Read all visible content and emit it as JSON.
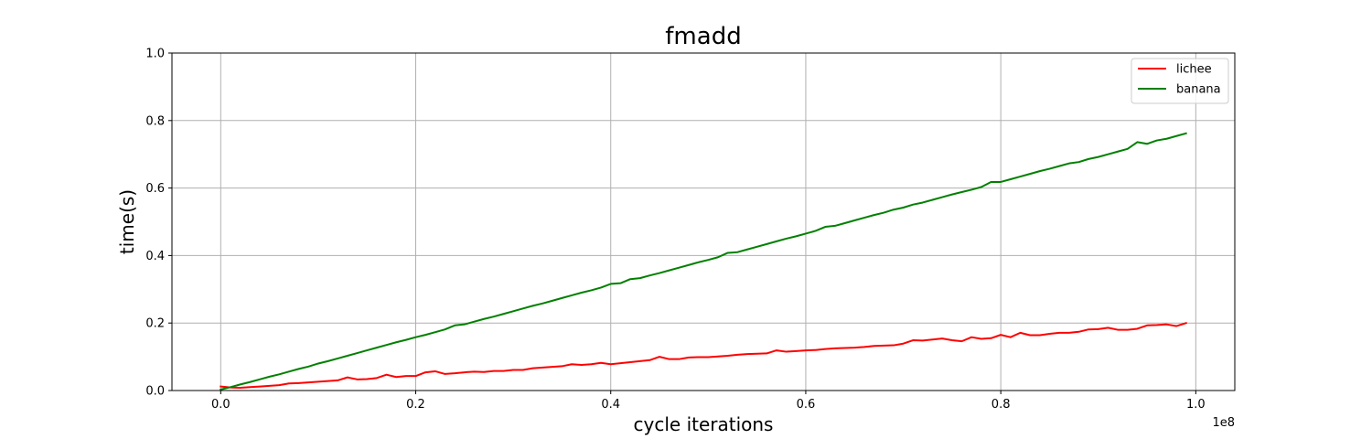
{
  "chart_data": {
    "type": "line",
    "title": "fmadd",
    "xlabel": "cycle iterations",
    "ylabel": "time(s)",
    "x_offset_label": "1e8",
    "xlim": [
      -0.05,
      1.04
    ],
    "ylim": [
      0.0,
      1.0
    ],
    "xticks": [
      0.0,
      0.2,
      0.4,
      0.6,
      0.8,
      1.0
    ],
    "xtick_labels": [
      "0.0",
      "0.2",
      "0.4",
      "0.6",
      "0.8",
      "1.0"
    ],
    "yticks": [
      0.0,
      0.2,
      0.4,
      0.6,
      0.8,
      1.0
    ],
    "ytick_labels": [
      "0.0",
      "0.2",
      "0.4",
      "0.6",
      "0.8",
      "1.0"
    ],
    "grid": true,
    "legend_position": "top-right",
    "x": [
      0.0,
      0.01,
      0.02,
      0.03,
      0.04,
      0.05,
      0.06,
      0.07,
      0.08,
      0.09,
      0.1,
      0.11,
      0.12,
      0.13,
      0.14,
      0.15,
      0.16,
      0.17,
      0.18,
      0.19,
      0.2,
      0.21,
      0.22,
      0.23,
      0.24,
      0.25,
      0.26,
      0.27,
      0.28,
      0.29,
      0.3,
      0.31,
      0.32,
      0.33,
      0.34,
      0.35,
      0.36,
      0.37,
      0.38,
      0.39,
      0.4,
      0.41,
      0.42,
      0.43,
      0.44,
      0.45,
      0.46,
      0.47,
      0.48,
      0.49,
      0.5,
      0.51,
      0.52,
      0.53,
      0.54,
      0.55,
      0.56,
      0.57,
      0.58,
      0.59,
      0.6,
      0.61,
      0.62,
      0.63,
      0.64,
      0.65,
      0.66,
      0.67,
      0.68,
      0.69,
      0.7,
      0.71,
      0.72,
      0.73,
      0.74,
      0.75,
      0.76,
      0.77,
      0.78,
      0.79,
      0.8,
      0.81,
      0.82,
      0.83,
      0.84,
      0.85,
      0.86,
      0.87,
      0.88,
      0.89,
      0.9,
      0.91,
      0.92,
      0.93,
      0.94,
      0.95,
      0.96,
      0.97,
      0.98,
      0.99
    ],
    "series": [
      {
        "name": "lichee",
        "color": "#ff0000",
        "values": [
          0.012,
          0.009,
          0.008,
          0.01,
          0.012,
          0.014,
          0.016,
          0.021,
          0.022,
          0.024,
          0.026,
          0.028,
          0.03,
          0.039,
          0.033,
          0.034,
          0.037,
          0.047,
          0.04,
          0.043,
          0.043,
          0.054,
          0.057,
          0.049,
          0.051,
          0.054,
          0.056,
          0.055,
          0.058,
          0.058,
          0.061,
          0.061,
          0.066,
          0.068,
          0.07,
          0.072,
          0.078,
          0.076,
          0.078,
          0.082,
          0.078,
          0.081,
          0.084,
          0.087,
          0.09,
          0.1,
          0.093,
          0.093,
          0.098,
          0.099,
          0.099,
          0.101,
          0.103,
          0.106,
          0.108,
          0.109,
          0.11,
          0.119,
          0.115,
          0.117,
          0.119,
          0.12,
          0.123,
          0.125,
          0.126,
          0.127,
          0.129,
          0.132,
          0.133,
          0.134,
          0.139,
          0.149,
          0.148,
          0.151,
          0.154,
          0.149,
          0.146,
          0.158,
          0.153,
          0.155,
          0.165,
          0.158,
          0.171,
          0.164,
          0.164,
          0.168,
          0.171,
          0.171,
          0.174,
          0.181,
          0.182,
          0.186,
          0.18,
          0.18,
          0.183,
          0.193,
          0.194,
          0.196,
          0.191,
          0.2
        ]
      },
      {
        "name": "banana",
        "color": "#008000",
        "values": [
          0.003,
          0.01,
          0.018,
          0.025,
          0.033,
          0.041,
          0.048,
          0.056,
          0.064,
          0.071,
          0.08,
          0.087,
          0.095,
          0.103,
          0.111,
          0.119,
          0.127,
          0.135,
          0.143,
          0.15,
          0.158,
          0.165,
          0.173,
          0.181,
          0.193,
          0.196,
          0.204,
          0.212,
          0.219,
          0.227,
          0.235,
          0.243,
          0.251,
          0.258,
          0.266,
          0.274,
          0.282,
          0.29,
          0.297,
          0.305,
          0.316,
          0.318,
          0.33,
          0.333,
          0.341,
          0.348,
          0.356,
          0.364,
          0.372,
          0.38,
          0.387,
          0.395,
          0.408,
          0.41,
          0.418,
          0.426,
          0.434,
          0.442,
          0.45,
          0.457,
          0.465,
          0.473,
          0.485,
          0.488,
          0.496,
          0.504,
          0.512,
          0.52,
          0.527,
          0.536,
          0.542,
          0.551,
          0.557,
          0.565,
          0.573,
          0.581,
          0.588,
          0.595,
          0.603,
          0.618,
          0.618,
          0.626,
          0.634,
          0.642,
          0.65,
          0.657,
          0.665,
          0.673,
          0.677,
          0.686,
          0.692,
          0.7,
          0.708,
          0.716,
          0.736,
          0.731,
          0.741,
          0.746,
          0.754,
          0.762
        ]
      }
    ]
  }
}
